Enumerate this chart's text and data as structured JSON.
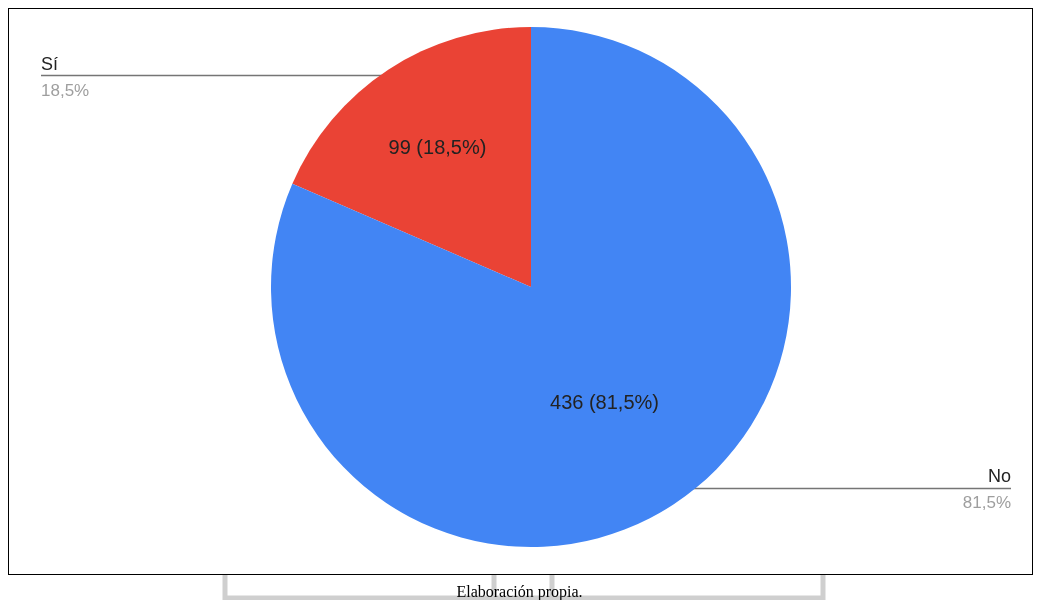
{
  "chart_data": {
    "type": "pie",
    "categories": [
      "Sí",
      "No"
    ],
    "values": [
      99,
      436
    ],
    "colors": [
      "#ea4335",
      "#4285f4"
    ],
    "value_labels": [
      "99 (18,5%)",
      "436 (81,5%)"
    ],
    "annotations": [
      {
        "text": "18,5%",
        "x": "Sí"
      },
      {
        "text": "81,5%",
        "x": "No"
      },
      "Elaboración propia."
    ]
  }
}
